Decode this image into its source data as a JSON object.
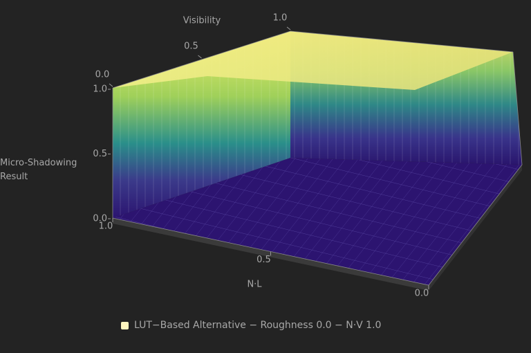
{
  "chart_data": {
    "type": "surface",
    "xlabel": "N·L",
    "ylabel": "Visibility",
    "zlabel": "Micro-Shadowing Result",
    "xlim": [
      1,
      0
    ],
    "xticks": [
      {
        "value": 1,
        "label": "1.0"
      },
      0.5,
      {
        "value": 0,
        "label": "0.0"
      }
    ],
    "ylim": [
      0,
      1
    ],
    "yticks": [
      {
        "value": 0,
        "label": "0.0"
      },
      0.5,
      {
        "value": 1,
        "label": "1.0"
      }
    ],
    "zlim": [
      0,
      1
    ],
    "zticks": [
      {
        "value": 0,
        "label": "0.0"
      },
      0.5,
      {
        "value": 1,
        "label": "1.0"
      }
    ],
    "series": [
      {
        "name": "LUT−Based Alternative − Roughness 0.0 − N·V 1.0",
        "color": "#fff6c0"
      }
    ]
  }
}
